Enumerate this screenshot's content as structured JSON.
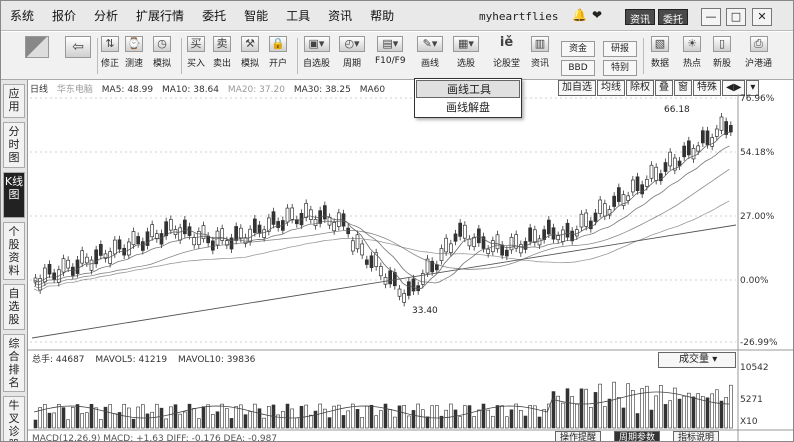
{
  "menubar": {
    "items": [
      "系统",
      "报价",
      "分析",
      "扩展行情",
      "委托",
      "智能",
      "工具",
      "资讯",
      "帮助"
    ],
    "username": "myheartflies",
    "news_btn": "资讯",
    "trade_btn": "委托",
    "min": "—",
    "max": "□",
    "close": "✕"
  },
  "toolbar": {
    "items": [
      {
        "label": "",
        "icon": "grid-icon"
      },
      {
        "label": "",
        "icon": "back-icon"
      },
      {
        "label": "修正",
        "icon": "adjust-icon"
      },
      {
        "label": "测速",
        "icon": "speed-icon"
      },
      {
        "label": "模拟",
        "icon": "clock-icon"
      },
      {
        "label": "买入",
        "icon": "buy-icon"
      },
      {
        "label": "卖出",
        "icon": "sell-icon"
      },
      {
        "label": "模拟",
        "icon": "hammer-icon"
      },
      {
        "label": "开户",
        "icon": "lock-icon"
      },
      {
        "label": "自选股",
        "icon": "stock-icon"
      },
      {
        "label": "周期",
        "icon": "period-icon"
      },
      {
        "label": "F10/F9",
        "icon": "f10-icon"
      },
      {
        "label": "画线",
        "icon": "draw-icon"
      },
      {
        "label": "选股",
        "icon": "pick-icon"
      },
      {
        "label": "论股堂",
        "icon": "forum-icon"
      },
      {
        "label": "资讯",
        "icon": "info-icon"
      },
      {
        "label": "数据",
        "icon": "data-icon"
      },
      {
        "label": "热点",
        "icon": "hot-icon"
      },
      {
        "label": "新股",
        "icon": "newstock-icon"
      },
      {
        "label": "沪港通",
        "icon": "hk-icon"
      }
    ],
    "fund_label": "资金",
    "bbd_label": "BBD",
    "research_label": "研报",
    "special_label": "特别"
  },
  "lefttabs": [
    "应用",
    "分时图",
    "K线图",
    "个股资料",
    "自选股",
    "综合排名",
    "牛叉诊股"
  ],
  "chart": {
    "stock_name": "日线",
    "stock_label": "华东电脑",
    "ma5": "MA5: 48.99",
    "ma10": "MA10: 38.64",
    "ma20": "MA20: 37.20",
    "ma30": "MA30: 38.25",
    "ma60": "MA60",
    "buttons": [
      "加自选",
      "均线",
      "除权",
      "叠",
      "窗",
      "特殊",
      "◀▶",
      "▾"
    ],
    "y_labels": [
      "76.96%",
      "54.18%",
      "27.00%",
      "0.00%",
      "-26.99%"
    ],
    "high_label": "66.18",
    "low_label": "33.40",
    "vol_labels": [
      "10542",
      "5271",
      "X10"
    ]
  },
  "draw_menu": {
    "items": [
      "画线工具",
      "画线解盘"
    ]
  },
  "volume": {
    "total": "总手: 44687",
    "mavol5": "MAVOL5: 41219",
    "mavol10": "MAVOL10: 39836",
    "select": "成交量"
  },
  "macd": {
    "text": "MACD(12,26,9)  MACD: +1.63  DIFF: -0.176  DEA: -0.987"
  },
  "bottom_tabs": [
    "操作提醒",
    "周期参数",
    "指标说明"
  ],
  "colors": {
    "candle": "#333333",
    "grid": "#cfcfcf",
    "ma": "#555555"
  }
}
